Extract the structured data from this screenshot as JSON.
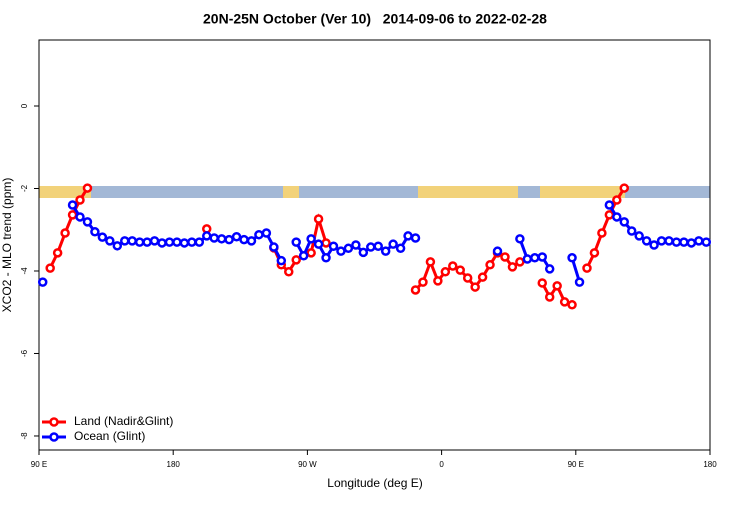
{
  "chart_data": {
    "type": "line",
    "title": "20N-25N October (Ver 10)   2014-09-06 to 2022-02-28",
    "x_label": "Longitude (deg E)",
    "y_label": "XCO2 - MLO trend (ppm)",
    "xlim": [
      90,
      540
    ],
    "ylim": [
      -8.34,
      1.6
    ],
    "xticks": [
      {
        "value": 90,
        "label": "90 E"
      },
      {
        "value": 180,
        "label": "180"
      },
      {
        "value": 270,
        "label": "90 W"
      },
      {
        "value": 360,
        "label": "0"
      },
      {
        "value": 450,
        "label": "90 E"
      },
      {
        "value": 540,
        "label": "180"
      }
    ],
    "yticks": [
      0,
      -2,
      -4,
      -6,
      -8
    ],
    "grid": false,
    "legend": "bottom-left",
    "x": [
      92.5,
      97.5,
      102.5,
      107.5,
      112.5,
      117.5,
      122.5,
      127.5,
      132.5,
      137.5,
      142.5,
      147.5,
      152.5,
      157.5,
      162.5,
      167.5,
      172.5,
      177.5,
      182.5,
      187.5,
      192.5,
      197.5,
      202.5,
      207.5,
      212.5,
      217.5,
      222.5,
      227.5,
      232.5,
      237.5,
      242.5,
      247.5,
      252.5,
      257.5,
      262.5,
      267.5,
      272.5,
      277.5,
      282.5,
      287.5,
      292.5,
      297.5,
      302.5,
      307.5,
      312.5,
      317.5,
      322.5,
      327.5,
      332.5,
      337.5,
      342.5,
      347.5,
      352.5,
      357.5,
      362.5,
      367.5,
      372.5,
      377.5,
      382.5,
      387.5,
      392.5,
      397.5,
      402.5,
      407.5,
      412.5,
      417.5,
      422.5,
      427.5,
      432.5,
      437.5,
      442.5,
      447.5,
      452.5,
      457.5,
      462.5,
      467.5,
      472.5,
      477.5,
      482.5,
      487.5,
      492.5,
      497.5,
      502.5,
      507.5,
      512.5,
      517.5,
      522.5,
      527.5,
      532.5,
      537.5
    ],
    "series": [
      {
        "name": "Land (Nadir&Glint)",
        "color": "#ff0000",
        "values": [
          null,
          -3.93,
          -3.56,
          -3.08,
          -2.64,
          -2.28,
          -1.99,
          null,
          null,
          null,
          null,
          null,
          null,
          null,
          null,
          null,
          null,
          null,
          null,
          null,
          null,
          null,
          -2.98,
          null,
          null,
          null,
          null,
          null,
          null,
          null,
          null,
          -3.44,
          -3.85,
          -4.02,
          -3.73,
          null,
          -3.56,
          -2.74,
          -3.32,
          null,
          null,
          null,
          null,
          null,
          null,
          null,
          null,
          null,
          null,
          null,
          -4.46,
          -4.27,
          -3.78,
          -4.24,
          -4.02,
          -3.88,
          -3.98,
          -4.17,
          -4.39,
          -4.15,
          -3.85,
          -3.56,
          -3.66,
          -3.9,
          -3.78,
          null,
          null,
          -4.29,
          -4.63,
          -4.36,
          -4.75,
          -4.82,
          null,
          -3.93,
          -3.56,
          -3.08,
          -2.64,
          -2.28,
          -1.99,
          null,
          null,
          null,
          null,
          null,
          null,
          null,
          null,
          null,
          null,
          null
        ]
      },
      {
        "name": "Ocean (Glint)",
        "color": "#0000ff",
        "values": [
          -4.27,
          null,
          null,
          null,
          -2.4,
          -2.69,
          -2.81,
          -3.05,
          -3.18,
          -3.27,
          -3.39,
          -3.27,
          -3.27,
          -3.3,
          -3.3,
          -3.27,
          -3.32,
          -3.3,
          -3.3,
          -3.32,
          -3.3,
          -3.3,
          -3.15,
          -3.2,
          -3.22,
          -3.24,
          -3.17,
          -3.24,
          -3.27,
          -3.12,
          -3.08,
          -3.42,
          -3.75,
          null,
          -3.3,
          -3.63,
          -3.22,
          -3.35,
          -3.68,
          -3.4,
          -3.52,
          -3.45,
          -3.37,
          -3.55,
          -3.42,
          -3.4,
          -3.52,
          -3.35,
          -3.45,
          -3.15,
          -3.2,
          null,
          null,
          null,
          null,
          null,
          null,
          null,
          null,
          null,
          null,
          -3.52,
          null,
          null,
          -3.22,
          -3.71,
          -3.68,
          -3.66,
          -3.95,
          null,
          null,
          -3.68,
          -4.27,
          null,
          null,
          null,
          -2.4,
          -2.69,
          -2.81,
          -3.03,
          -3.15,
          -3.27,
          -3.37,
          -3.27,
          -3.27,
          -3.3,
          -3.3,
          -3.32,
          -3.27,
          -3.3
        ]
      }
    ]
  }
}
